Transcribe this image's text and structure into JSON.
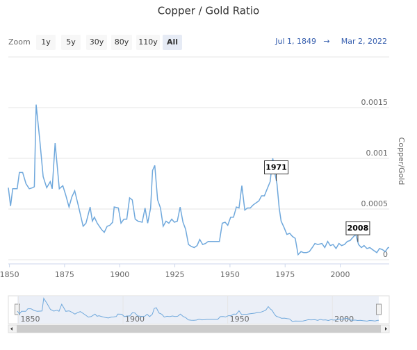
{
  "chart_data": {
    "type": "line",
    "title": "Copper / Gold Ratio",
    "zoom": {
      "label": "Zoom",
      "buttons": [
        "1y",
        "5y",
        "30y",
        "80y",
        "110y",
        "All"
      ],
      "selected": 5
    },
    "range": {
      "from": "Jul 1, 1849",
      "separator": "→",
      "to": "Mar 2, 2022"
    },
    "y_label": "Copper/Gold",
    "color": "#6fa8dc",
    "x": [
      1849.5,
      1850.5,
      1851.5,
      1853.5,
      1854.5,
      1856,
      1857.5,
      1859,
      1860.5,
      1861.3,
      1862.1,
      1863.7,
      1865.3,
      1866.9,
      1868.5,
      1869.4,
      1870.7,
      1871.7,
      1872.6,
      1874.2,
      1875.5,
      1877,
      1878.3,
      1879.6,
      1881.5,
      1883.4,
      1884.7,
      1886.6,
      1887.6,
      1888.5,
      1889.8,
      1891.7,
      1893,
      1894.3,
      1895.5,
      1896.8,
      1897.5,
      1899.4,
      1900.6,
      1901.9,
      1903.2,
      1904.5,
      1905.7,
      1907,
      1908.3,
      1910.2,
      1911.5,
      1912.7,
      1914,
      1914.9,
      1915.9,
      1917.2,
      1918.5,
      1919.7,
      1921,
      1922.3,
      1923.6,
      1924.8,
      1926.1,
      1927.4,
      1928.7,
      1929.9,
      1931.2,
      1932.5,
      1933.8,
      1935.1,
      1936.3,
      1937.6,
      1938.9,
      1940.1,
      1943.3,
      1945.2,
      1946.5,
      1947.8,
      1949,
      1950.3,
      1951.6,
      1952.9,
      1954.1,
      1955.4,
      1956.7,
      1957.9,
      1959.2,
      1960.5,
      1961.8,
      1963.1,
      1964.3,
      1965.6,
      1966.9,
      1968.2,
      1969.4,
      1970.4,
      1971.3,
      1972.3,
      1973.2,
      1974.5,
      1975.8,
      1977.1,
      1978.3,
      1979.6,
      1980.9,
      1982.2,
      1983.4,
      1984.7,
      1986,
      1987.3,
      1988.5,
      1989.8,
      1991.7,
      1993,
      1994.3,
      1995.5,
      1996.8,
      1998.1,
      1999.4,
      2000.6,
      2001.9,
      2003.2,
      2004.5,
      2005.7,
      2007,
      2008.3,
      2009.6,
      2010.8,
      2012.1,
      2013.4,
      2014.6,
      2016.6,
      2017.8,
      2019.1,
      2020.4,
      2021.7,
      2022.2
    ],
    "values": [
      0.00071,
      0.00053,
      0.0007,
      0.0007,
      0.00086,
      0.00086,
      0.00075,
      0.0007,
      0.00071,
      0.00072,
      0.00153,
      0.00119,
      0.00082,
      0.00071,
      0.00077,
      0.0007,
      0.00115,
      0.00092,
      0.0007,
      0.00073,
      0.00064,
      0.00052,
      0.00062,
      0.00068,
      0.00051,
      0.00033,
      0.00036,
      0.00052,
      0.00038,
      0.00042,
      0.00036,
      0.0003,
      0.00027,
      0.00033,
      0.00034,
      0.00037,
      0.00052,
      0.00051,
      0.00036,
      0.0004,
      0.0004,
      0.00061,
      0.00059,
      0.0004,
      0.00038,
      0.00037,
      0.00051,
      0.00036,
      0.00051,
      0.00088,
      0.00093,
      0.00059,
      0.00051,
      0.00033,
      0.00038,
      0.00036,
      0.0004,
      0.00037,
      0.00038,
      0.00052,
      0.00037,
      0.0003,
      0.00015,
      0.00013,
      0.00012,
      0.00014,
      0.0002,
      0.00015,
      0.00016,
      0.00018,
      0.00018,
      0.00018,
      0.00036,
      0.00037,
      0.00034,
      0.00042,
      0.00042,
      0.00052,
      0.00051,
      0.00073,
      0.00049,
      0.00051,
      0.00051,
      0.00054,
      0.00056,
      0.00058,
      0.00063,
      0.00063,
      0.0007,
      0.00077,
      0.001,
      0.00085,
      0.00075,
      0.00051,
      0.00038,
      0.00032,
      0.00025,
      0.00026,
      0.00023,
      0.00021,
      5e-05,
      8e-05,
      7e-05,
      7e-05,
      8e-05,
      0.00012,
      0.00016,
      0.00015,
      0.00016,
      0.00012,
      0.00018,
      0.00014,
      0.00015,
      0.00011,
      0.00016,
      0.00014,
      0.00015,
      0.00018,
      0.00019,
      0.00022,
      0.00025,
      0.00015,
      0.00012,
      0.00014,
      0.00011,
      0.00012,
      0.0001,
      7e-05,
      0.00011,
      0.0001,
      8e-05,
      0.00012,
      0.00012
    ],
    "xlim": [
      1849.5,
      2022.2
    ],
    "xticks": [
      1850,
      1875,
      1900,
      1925,
      1950,
      1975,
      2000
    ],
    "ylim": [
      0,
      0.002
    ],
    "yticks": [
      0,
      0.0005,
      0.001,
      0.0015
    ],
    "grid": true,
    "flags": [
      {
        "x": 1971,
        "label": "1971"
      },
      {
        "x": 2008,
        "label": "2008"
      }
    ],
    "navigator_xticks": [
      1850,
      1900,
      1950,
      2000
    ]
  }
}
